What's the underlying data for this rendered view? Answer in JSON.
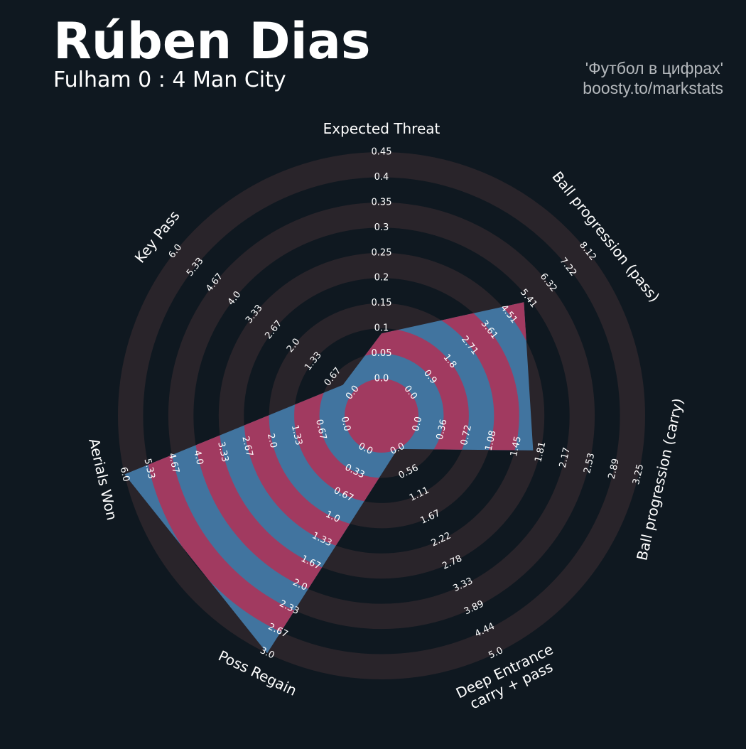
{
  "chart_data": {
    "type": "radar",
    "title": "Rúben Dias",
    "subtitle": "Fulham 0 : 4 Man City",
    "credits": [
      "'Футбол в цифрах'",
      "boosty.to/markstats"
    ],
    "categories": [
      [
        "Expected Threat"
      ],
      [
        "Ball progression (pass)"
      ],
      [
        "Ball progression (carry)"
      ],
      [
        "Deep Entrance",
        "carry + pass"
      ],
      [
        "Poss Regain"
      ],
      [
        "Aerials Won"
      ],
      [
        "Key Pass"
      ]
    ],
    "values": [
      0.09,
      5.2,
      1.7,
      0,
      3.0,
      6.0,
      0.33
    ],
    "color": "#41749f",
    "ring_color": "#a13a60",
    "band_color": "#29242a",
    "axes": [
      {
        "lim": [
          0,
          0.45
        ],
        "ticks": [
          {
            "value": 0,
            "label": "0.0"
          },
          0.05,
          0.1,
          0.15,
          0.2,
          0.25,
          0.3,
          0.35,
          0.4,
          0.45
        ]
      },
      {
        "lim": [
          0,
          8.12
        ],
        "ticks": [
          {
            "value": 0,
            "label": "0.0"
          },
          0.9,
          1.8,
          2.71,
          3.61,
          4.51,
          5.41,
          6.32,
          7.22,
          8.12
        ]
      },
      {
        "lim": [
          0,
          3.25
        ],
        "ticks": [
          {
            "value": 0,
            "label": "0.0"
          },
          0.36,
          0.72,
          1.08,
          1.45,
          1.81,
          2.17,
          2.53,
          2.89,
          3.25
        ]
      },
      {
        "lim": [
          0,
          5
        ],
        "ticks": [
          {
            "value": 0,
            "label": "0.0"
          },
          0.56,
          1.11,
          1.67,
          2.22,
          2.78,
          3.33,
          3.89,
          4.44,
          {
            "value": 5,
            "label": "5.0"
          }
        ]
      },
      {
        "lim": [
          0,
          3
        ],
        "ticks": [
          {
            "value": 0,
            "label": "0.0"
          },
          0.33,
          0.67,
          {
            "value": 1,
            "label": "1.0"
          },
          1.33,
          1.67,
          {
            "value": 2,
            "label": "2.0"
          },
          2.33,
          2.67,
          {
            "value": 3,
            "label": "3.0"
          }
        ]
      },
      {
        "lim": [
          0,
          6
        ],
        "ticks": [
          {
            "value": 0,
            "label": "0.0"
          },
          0.67,
          1.33,
          {
            "value": 2,
            "label": "2.0"
          },
          2.67,
          3.33,
          {
            "value": 4,
            "label": "4.0"
          },
          4.67,
          5.33,
          {
            "value": 6,
            "label": "6.0"
          }
        ]
      },
      {
        "lim": [
          0,
          6
        ],
        "ticks": [
          {
            "value": 0,
            "label": "0.0"
          },
          0.67,
          1.33,
          {
            "value": 2,
            "label": "2.0"
          },
          2.67,
          3.33,
          {
            "value": 4,
            "label": "4.0"
          },
          4.67,
          5.33,
          {
            "value": 6,
            "label": "6.0"
          }
        ]
      }
    ]
  }
}
